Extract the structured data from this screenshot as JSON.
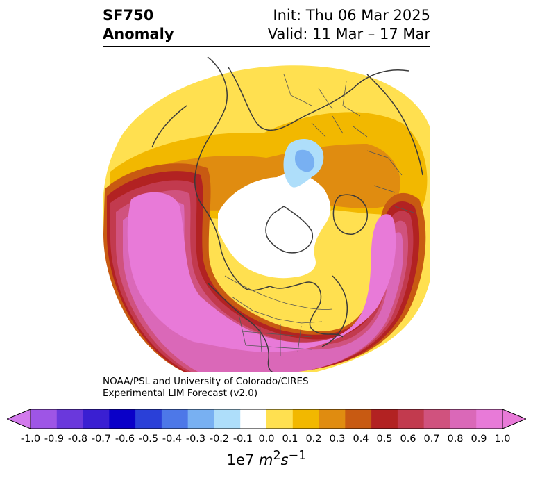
{
  "title": {
    "line1": "SF750",
    "line2": "Anomaly",
    "init": "Init: Thu 06 Mar 2025",
    "valid": "Valid: 11 Mar – 17 Mar"
  },
  "credit": {
    "line1": "NOAA/PSL and University of Colorado/CIRES",
    "line2": "Experimental LIM Forecast (v2.0)"
  },
  "colorbar": {
    "ticks": [
      "-1.0",
      "-0.9",
      "-0.8",
      "-0.7",
      "-0.6",
      "-0.5",
      "-0.4",
      "-0.3",
      "-0.2",
      "-0.1",
      "0.0",
      "0.1",
      "0.2",
      "0.3",
      "0.4",
      "0.5",
      "0.6",
      "0.7",
      "0.8",
      "0.9",
      "1.0"
    ],
    "colors": [
      "#9e55e6",
      "#6a38dc",
      "#3a1fd2",
      "#0a00c8",
      "#2a40d8",
      "#4d78e8",
      "#78b0f2",
      "#aedefa",
      "#ffffff",
      "#ffe050",
      "#f2b800",
      "#e08c10",
      "#c85a12",
      "#b22222",
      "#c23a4e",
      "#d0527e",
      "#da68b8",
      "#e87ad8"
    ],
    "under_color": "#d27aec",
    "over_color": "#e87ad8",
    "units_prefix": "1e7 ",
    "units_main": "m",
    "units_sup1": "2",
    "units_mid": "s",
    "units_sup2": "−1"
  },
  "map": {
    "projection": "north-polar-stereographic",
    "field": "SF750 anomaly",
    "features": [
      "coastlines",
      "country-borders",
      "us-state-borders",
      "canada-province-borders"
    ]
  }
}
